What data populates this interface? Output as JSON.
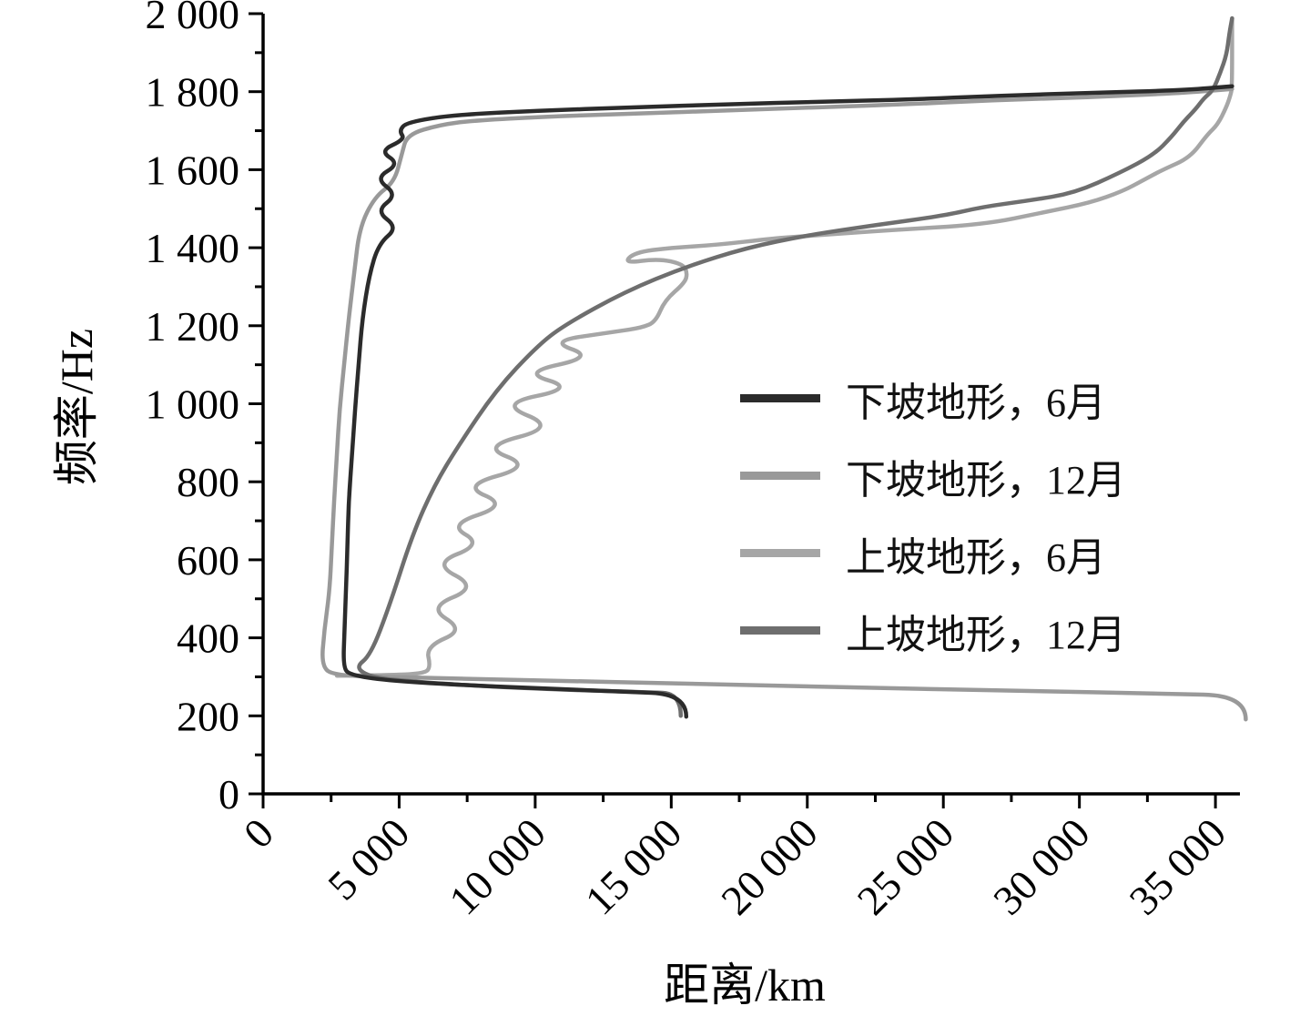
{
  "figure": {
    "background": "#ffffff"
  },
  "chart_data": {
    "type": "line",
    "title": "",
    "xlabel": "距离/km",
    "ylabel": "频率/Hz",
    "xlim": [
      0,
      35900
    ],
    "ylim": [
      0,
      2000
    ],
    "x_ticks_major": [
      0,
      5000,
      10000,
      15000,
      20000,
      25000,
      30000,
      35000
    ],
    "x_ticks_minor": [
      2500,
      7500,
      12500,
      17500,
      22500,
      27500,
      32500
    ],
    "y_ticks_major": [
      0,
      200,
      400,
      600,
      800,
      1000,
      1200,
      1400,
      1600,
      1800,
      2000
    ],
    "y_ticks_minor": [
      100,
      300,
      500,
      700,
      900,
      1100,
      1300,
      1500,
      1700,
      1900
    ],
    "grid": false,
    "axis_color": "#000000",
    "tick_label_format": "space-thousands",
    "legend": {
      "position": "middle-right",
      "entries": [
        {
          "label": "下坡地形，6月",
          "color": "#2b2b2b"
        },
        {
          "label": "下坡地形，12月",
          "color": "#999999"
        },
        {
          "label": "上坡地形，6月",
          "color": "#a6a6a6"
        },
        {
          "label": "上坡地形，12月",
          "color": "#6e6e6e"
        }
      ]
    },
    "series": [
      {
        "id": "upslope-jun",
        "label": "上坡地形，6月",
        "color": "#a6a6a6",
        "width": 4.5,
        "points": [
          [
            2711,
            303
          ],
          [
            4500,
            304
          ],
          [
            5900,
            308
          ],
          [
            6158,
            324
          ],
          [
            5991,
            378
          ],
          [
            7397,
            420
          ],
          [
            6058,
            478
          ],
          [
            7900,
            530
          ],
          [
            6225,
            590
          ],
          [
            8066,
            640
          ],
          [
            6800,
            690
          ],
          [
            9000,
            740
          ],
          [
            7300,
            790
          ],
          [
            9900,
            840
          ],
          [
            8000,
            890
          ],
          [
            10800,
            940
          ],
          [
            8635,
            1000
          ],
          [
            11480,
            1040
          ],
          [
            9500,
            1080
          ],
          [
            12182,
            1120
          ],
          [
            10500,
            1160
          ],
          [
            12985,
            1185
          ],
          [
            13923,
            1195
          ],
          [
            14425,
            1210
          ],
          [
            14760,
            1265
          ],
          [
            15496,
            1310
          ],
          [
            15596,
            1335
          ],
          [
            15429,
            1358
          ],
          [
            14525,
            1372
          ],
          [
            13254,
            1360
          ],
          [
            13655,
            1388
          ],
          [
            14994,
            1400
          ],
          [
            16667,
            1407
          ],
          [
            18776,
            1424
          ],
          [
            20000,
            1430
          ],
          [
            23000,
            1445
          ],
          [
            26474,
            1459
          ],
          [
            28717,
            1491
          ],
          [
            30389,
            1515
          ],
          [
            31595,
            1545
          ],
          [
            32397,
            1575
          ],
          [
            33066,
            1600
          ],
          [
            34071,
            1631
          ],
          [
            34700,
            1690
          ],
          [
            35076,
            1715
          ],
          [
            35400,
            1760
          ],
          [
            35550,
            1790
          ],
          [
            35612,
            1810
          ],
          [
            35612,
            1988
          ]
        ]
      },
      {
        "id": "downslope-dec",
        "label": "下坡地形，12月",
        "color": "#999999",
        "width": 4.5,
        "points": [
          [
            36114,
            191
          ],
          [
            36114,
            252
          ],
          [
            33000,
            257
          ],
          [
            28000,
            264
          ],
          [
            22000,
            272
          ],
          [
            16000,
            282
          ],
          [
            10000,
            291
          ],
          [
            5000,
            299
          ],
          [
            2700,
            303
          ],
          [
            2142,
            324
          ],
          [
            2250,
            420
          ],
          [
            2443,
            518
          ],
          [
            2527,
            635
          ],
          [
            2611,
            751
          ],
          [
            2710,
            868
          ],
          [
            2812,
            985
          ],
          [
            2979,
            1100
          ],
          [
            3146,
            1218
          ],
          [
            3350,
            1335
          ],
          [
            3548,
            1452
          ],
          [
            4100,
            1530
          ],
          [
            4820,
            1568
          ],
          [
            5100,
            1640
          ],
          [
            5288,
            1690
          ],
          [
            6500,
            1715
          ],
          [
            7731,
            1726
          ],
          [
            10400,
            1736
          ],
          [
            13756,
            1744
          ],
          [
            17100,
            1752
          ],
          [
            20450,
            1760
          ],
          [
            23800,
            1768
          ],
          [
            27144,
            1779
          ],
          [
            30491,
            1786
          ],
          [
            33838,
            1797
          ],
          [
            35612,
            1807
          ]
        ]
      },
      {
        "id": "upslope-dec",
        "label": "上坡地形，12月",
        "color": "#6e6e6e",
        "width": 4.5,
        "points": [
          [
            15350,
            200
          ],
          [
            15350,
            257
          ],
          [
            14000,
            261
          ],
          [
            11000,
            267
          ],
          [
            8000,
            276
          ],
          [
            5500,
            288
          ],
          [
            4000,
            298
          ],
          [
            3380,
            324
          ],
          [
            3949,
            355
          ],
          [
            4652,
            483
          ],
          [
            5489,
            665
          ],
          [
            6292,
            791
          ],
          [
            7163,
            891
          ],
          [
            8568,
            1036
          ],
          [
            10074,
            1148
          ],
          [
            11078,
            1202
          ],
          [
            13321,
            1288
          ],
          [
            15529,
            1351
          ],
          [
            17772,
            1400
          ],
          [
            20000,
            1432
          ],
          [
            22500,
            1458
          ],
          [
            25000,
            1482
          ],
          [
            26474,
            1505
          ],
          [
            28149,
            1521
          ],
          [
            29820,
            1540
          ],
          [
            31494,
            1592
          ],
          [
            32732,
            1638
          ],
          [
            33401,
            1685
          ],
          [
            33837,
            1724
          ],
          [
            34272,
            1755
          ],
          [
            34573,
            1783
          ],
          [
            34908,
            1803
          ],
          [
            35176,
            1848
          ],
          [
            35410,
            1895
          ],
          [
            35511,
            1950
          ],
          [
            35612,
            1988
          ]
        ]
      },
      {
        "id": "downslope-jun",
        "label": "下坡地形，6月",
        "color": "#2b2b2b",
        "width": 4.5,
        "points": [
          [
            15550,
            198
          ],
          [
            15550,
            255
          ],
          [
            13000,
            263
          ],
          [
            10000,
            271
          ],
          [
            7000,
            280
          ],
          [
            4500,
            291
          ],
          [
            3200,
            305
          ],
          [
            2945,
            324
          ],
          [
            2990,
            420
          ],
          [
            3046,
            518
          ],
          [
            3100,
            635
          ],
          [
            3146,
            751
          ],
          [
            3270,
            868
          ],
          [
            3380,
            985
          ],
          [
            3510,
            1100
          ],
          [
            3648,
            1218
          ],
          [
            3900,
            1330
          ],
          [
            4250,
            1410
          ],
          [
            4953,
            1452
          ],
          [
            4150,
            1494
          ],
          [
            4937,
            1536
          ],
          [
            4117,
            1578
          ],
          [
            5020,
            1615
          ],
          [
            4284,
            1648
          ],
          [
            5221,
            1678
          ],
          [
            5000,
            1700
          ],
          [
            5288,
            1722
          ],
          [
            7062,
            1741
          ],
          [
            10409,
            1752
          ],
          [
            13756,
            1760
          ],
          [
            17103,
            1768
          ],
          [
            20450,
            1774
          ],
          [
            23797,
            1780
          ],
          [
            27144,
            1790
          ],
          [
            30491,
            1797
          ],
          [
            33838,
            1804
          ],
          [
            35612,
            1814
          ]
        ]
      }
    ]
  }
}
